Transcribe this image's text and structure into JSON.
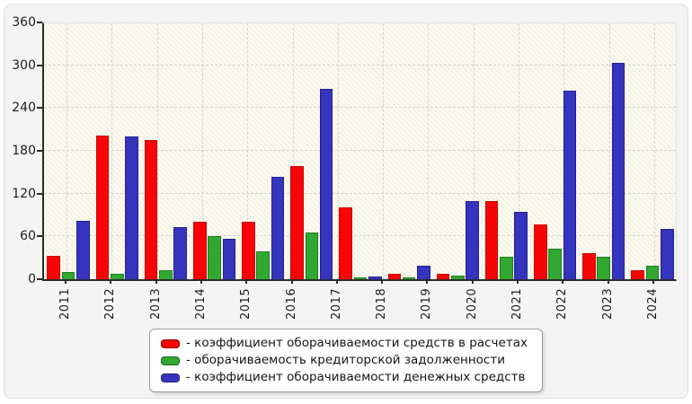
{
  "window": {
    "page_background": "#ffffff",
    "card_background": "#f4f4f4",
    "plot_background": "#fbfaf0",
    "axis_color": "#2b2b2b",
    "grid_color": "#d4d4d4"
  },
  "chart_data": {
    "type": "bar",
    "title": "",
    "xlabel": "",
    "ylabel": "",
    "categories": [
      "2011",
      "2012",
      "2013",
      "2014",
      "2015",
      "2016",
      "2017",
      "2018",
      "2019",
      "2020",
      "2021",
      "2022",
      "2023"
    ],
    "x_tick_labels": [
      "2011",
      "2012",
      "2013",
      "2014",
      "2015",
      "2016",
      "2017",
      "2018",
      "2019",
      "2020",
      "2021",
      "2022",
      "2023",
      "2024"
    ],
    "series": [
      {
        "name": "коэффициент оборачиваемости средств в расчетах",
        "color": "#f70505",
        "border_color": "#c90202",
        "values": [
          33,
          202,
          195,
          80,
          80,
          159,
          101,
          8,
          7,
          110,
          77,
          37,
          13
        ]
      },
      {
        "name": "оборачиваемость кредиторской задолженности",
        "color": "#31a831",
        "border_color": "#1f7d1f",
        "values": [
          10,
          7,
          12,
          61,
          39,
          66,
          2,
          3,
          5,
          32,
          43,
          31,
          19
        ]
      },
      {
        "name": "коэффициент оборачиваемости денежных средств",
        "color": "#3634bd",
        "border_color": "#232194",
        "values": [
          82,
          200,
          73,
          57,
          143,
          267,
          4,
          19,
          110,
          94,
          264,
          303,
          71
        ]
      }
    ],
    "ylim": [
      0,
      360
    ],
    "y_ticks": [
      0,
      60,
      120,
      180,
      240,
      300,
      360
    ],
    "grid": "dashed, horizontal at every 60 and vertical at every year tick",
    "legend_position": "bottom-center boxed",
    "legend_prefix": "- ",
    "layout_note": "source chart draws 13 bar groups evenly over the plot width while the axis shows 14 year ticks, so groups drift slightly right of their labels toward 2024"
  }
}
